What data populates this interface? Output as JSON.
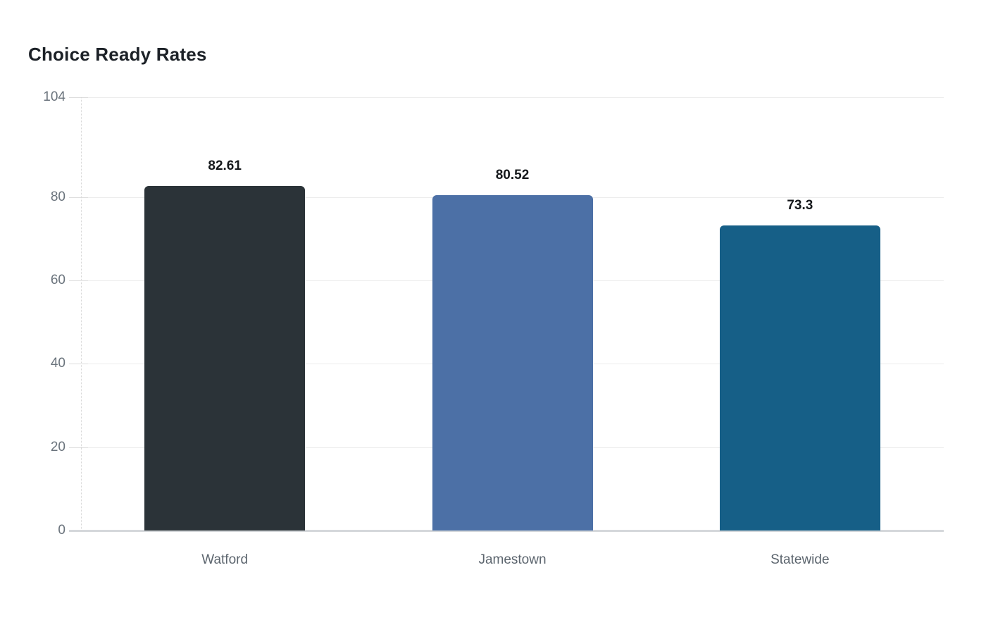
{
  "chart_data": {
    "type": "bar",
    "title": "Choice Ready Rates",
    "categories": [
      "Watford",
      "Jamestown",
      "Statewide"
    ],
    "values": [
      82.61,
      80.52,
      73.3
    ],
    "value_labels": [
      "82.61",
      "80.52",
      "73.3"
    ],
    "bar_colors": [
      "#2b3338",
      "#4c70a6",
      "#165f87"
    ],
    "xlabel": "",
    "ylabel": "",
    "ylim": [
      0,
      104
    ],
    "yticks": [
      0,
      20,
      40,
      60,
      80,
      104
    ],
    "ytick_labels": [
      "0",
      "20",
      "40",
      "60",
      "80",
      "104"
    ],
    "grid": true,
    "legend": false,
    "colors": {
      "background": "#ffffff",
      "title_text": "#1c2127",
      "value_label_text": "#15181b",
      "axis_tick_text": "#6a737c",
      "category_text": "#5c656e",
      "gridline": "#ececec",
      "baseline": "#d5d8db"
    }
  }
}
